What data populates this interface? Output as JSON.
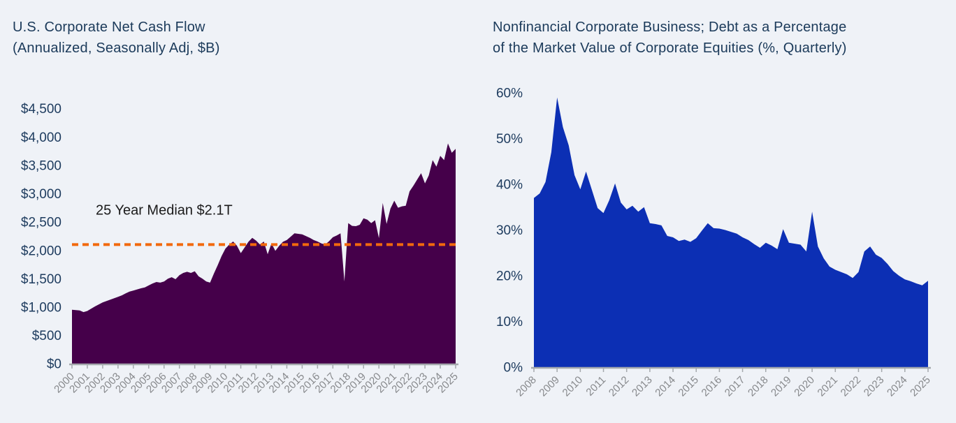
{
  "page": {
    "background_color": "#eff2f7",
    "title_color": "#1b3a5a",
    "axis_label_color": "#1d3b5e",
    "tick_label_color": "#87898c",
    "axis_line_color": "#a5a9ad"
  },
  "chart_data": [
    {
      "type": "area",
      "name": "us-corporate-net-cash-flow",
      "title_lines": [
        "U.S. Corporate Net Cash Flow",
        "(Annualized, Seasonally Adj, $B)"
      ],
      "fill_color": "#45004a",
      "grid": false,
      "legend": null,
      "x_start": 2000,
      "x_step": 0.25,
      "xlim": [
        2000,
        2025
      ],
      "ylim": [
        0,
        4500
      ],
      "x_tick_labels": [
        "2000",
        "2001",
        "2002",
        "2003",
        "2004",
        "2005",
        "2006",
        "2007",
        "2008",
        "2009",
        "2010",
        "2011",
        "2012",
        "2013",
        "2014",
        "2015",
        "2016",
        "2017",
        "2018",
        "2019",
        "2020",
        "2021",
        "2022",
        "2023",
        "2024",
        "2025"
      ],
      "y_tick_values": [
        0,
        500,
        1000,
        1500,
        2000,
        2500,
        3000,
        3500,
        4000,
        4500
      ],
      "y_tick_labels": [
        "$0",
        "$500",
        "$1,000",
        "$1,500",
        "$2,000",
        "$2,500",
        "$3,000",
        "$3,500",
        "$4,000",
        "$4,500"
      ],
      "annotation": {
        "label": "25 Year Median $2.1T",
        "value": 2100,
        "line_style": "dashed",
        "line_color": "#f2690d",
        "label_color": "#1b1b1b"
      },
      "values": [
        950,
        945,
        940,
        910,
        930,
        970,
        1010,
        1045,
        1080,
        1105,
        1130,
        1155,
        1180,
        1205,
        1240,
        1270,
        1290,
        1310,
        1330,
        1345,
        1380,
        1415,
        1440,
        1430,
        1450,
        1500,
        1525,
        1490,
        1560,
        1600,
        1620,
        1600,
        1630,
        1540,
        1500,
        1450,
        1430,
        1590,
        1740,
        1900,
        2030,
        2100,
        2155,
        2080,
        1950,
        2050,
        2150,
        2220,
        2170,
        2100,
        2155,
        1930,
        2120,
        1990,
        2080,
        2150,
        2180,
        2240,
        2300,
        2290,
        2280,
        2250,
        2220,
        2180,
        2155,
        2120,
        2100,
        2160,
        2230,
        2260,
        2300,
        1450,
        2480,
        2430,
        2425,
        2450,
        2565,
        2540,
        2480,
        2530,
        2215,
        2835,
        2465,
        2735,
        2875,
        2750,
        2775,
        2785,
        3040,
        3140,
        3250,
        3360,
        3180,
        3320,
        3590,
        3475,
        3665,
        3590,
        3885,
        3720,
        3790
      ]
    },
    {
      "type": "area",
      "name": "nonfinancial-corporate-debt-to-equity",
      "title_lines": [
        "Nonfinancial Corporate Business; Debt as a Percentage",
        "of the Market Value of Corporate Equities (%, Quarterly)"
      ],
      "fill_color": "#0c2fb4",
      "grid": false,
      "legend": null,
      "x_start": 2008,
      "x_step": 0.25,
      "xlim": [
        2008,
        2025
      ],
      "ylim": [
        0,
        60
      ],
      "x_tick_labels": [
        "2008",
        "2009",
        "2010",
        "2011",
        "2012",
        "2013",
        "2014",
        "2015",
        "2016",
        "2017",
        "2018",
        "2019",
        "2020",
        "2021",
        "2022",
        "2023",
        "2024",
        "2025"
      ],
      "y_tick_values": [
        0,
        10,
        20,
        30,
        40,
        50,
        60
      ],
      "y_tick_labels": [
        "0%",
        "10%",
        "20%",
        "30%",
        "40%",
        "50%",
        "60%"
      ],
      "annotation": null,
      "values": [
        37.0,
        38.0,
        40.5,
        47.0,
        59.0,
        52.5,
        48.5,
        42.0,
        38.9,
        42.8,
        38.8,
        34.8,
        33.7,
        36.5,
        40.2,
        36.0,
        34.5,
        35.3,
        34.0,
        35.0,
        31.5,
        31.3,
        31.0,
        28.7,
        28.4,
        27.6,
        27.9,
        27.4,
        28.2,
        29.9,
        31.5,
        30.4,
        30.3,
        30.0,
        29.6,
        29.2,
        28.4,
        27.8,
        26.9,
        26.1,
        27.2,
        26.6,
        25.8,
        30.2,
        27.2,
        27.0,
        26.8,
        25.3,
        34.0,
        26.4,
        23.8,
        22.0,
        21.3,
        20.8,
        20.3,
        19.5,
        20.8,
        25.3,
        26.4,
        24.6,
        23.9,
        22.6,
        21.0,
        20.0,
        19.2,
        18.8,
        18.3,
        17.9,
        18.9
      ]
    }
  ]
}
